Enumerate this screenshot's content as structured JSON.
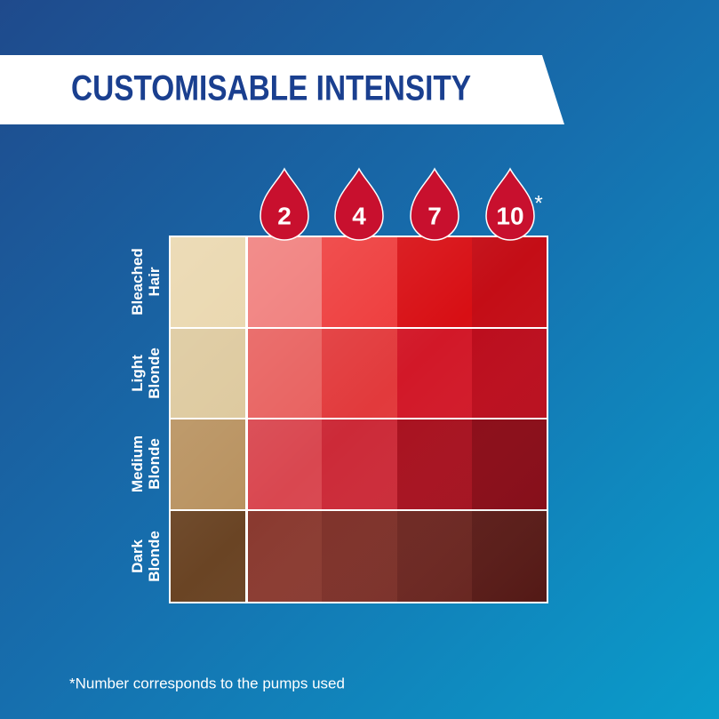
{
  "header": {
    "title": "CUSTOMISABLE INTENSITY"
  },
  "pumps": {
    "levels": [
      2,
      4,
      7,
      10
    ],
    "asterisk": "*"
  },
  "rows": [
    {
      "label": [
        "Bleached",
        "Hair"
      ]
    },
    {
      "label": [
        "Light",
        "Blonde"
      ]
    },
    {
      "label": [
        "Medium",
        "Blonde"
      ]
    },
    {
      "label": [
        "Dark",
        "Blonde"
      ]
    }
  ],
  "footnote": "*Number corresponds to the pumps used"
}
